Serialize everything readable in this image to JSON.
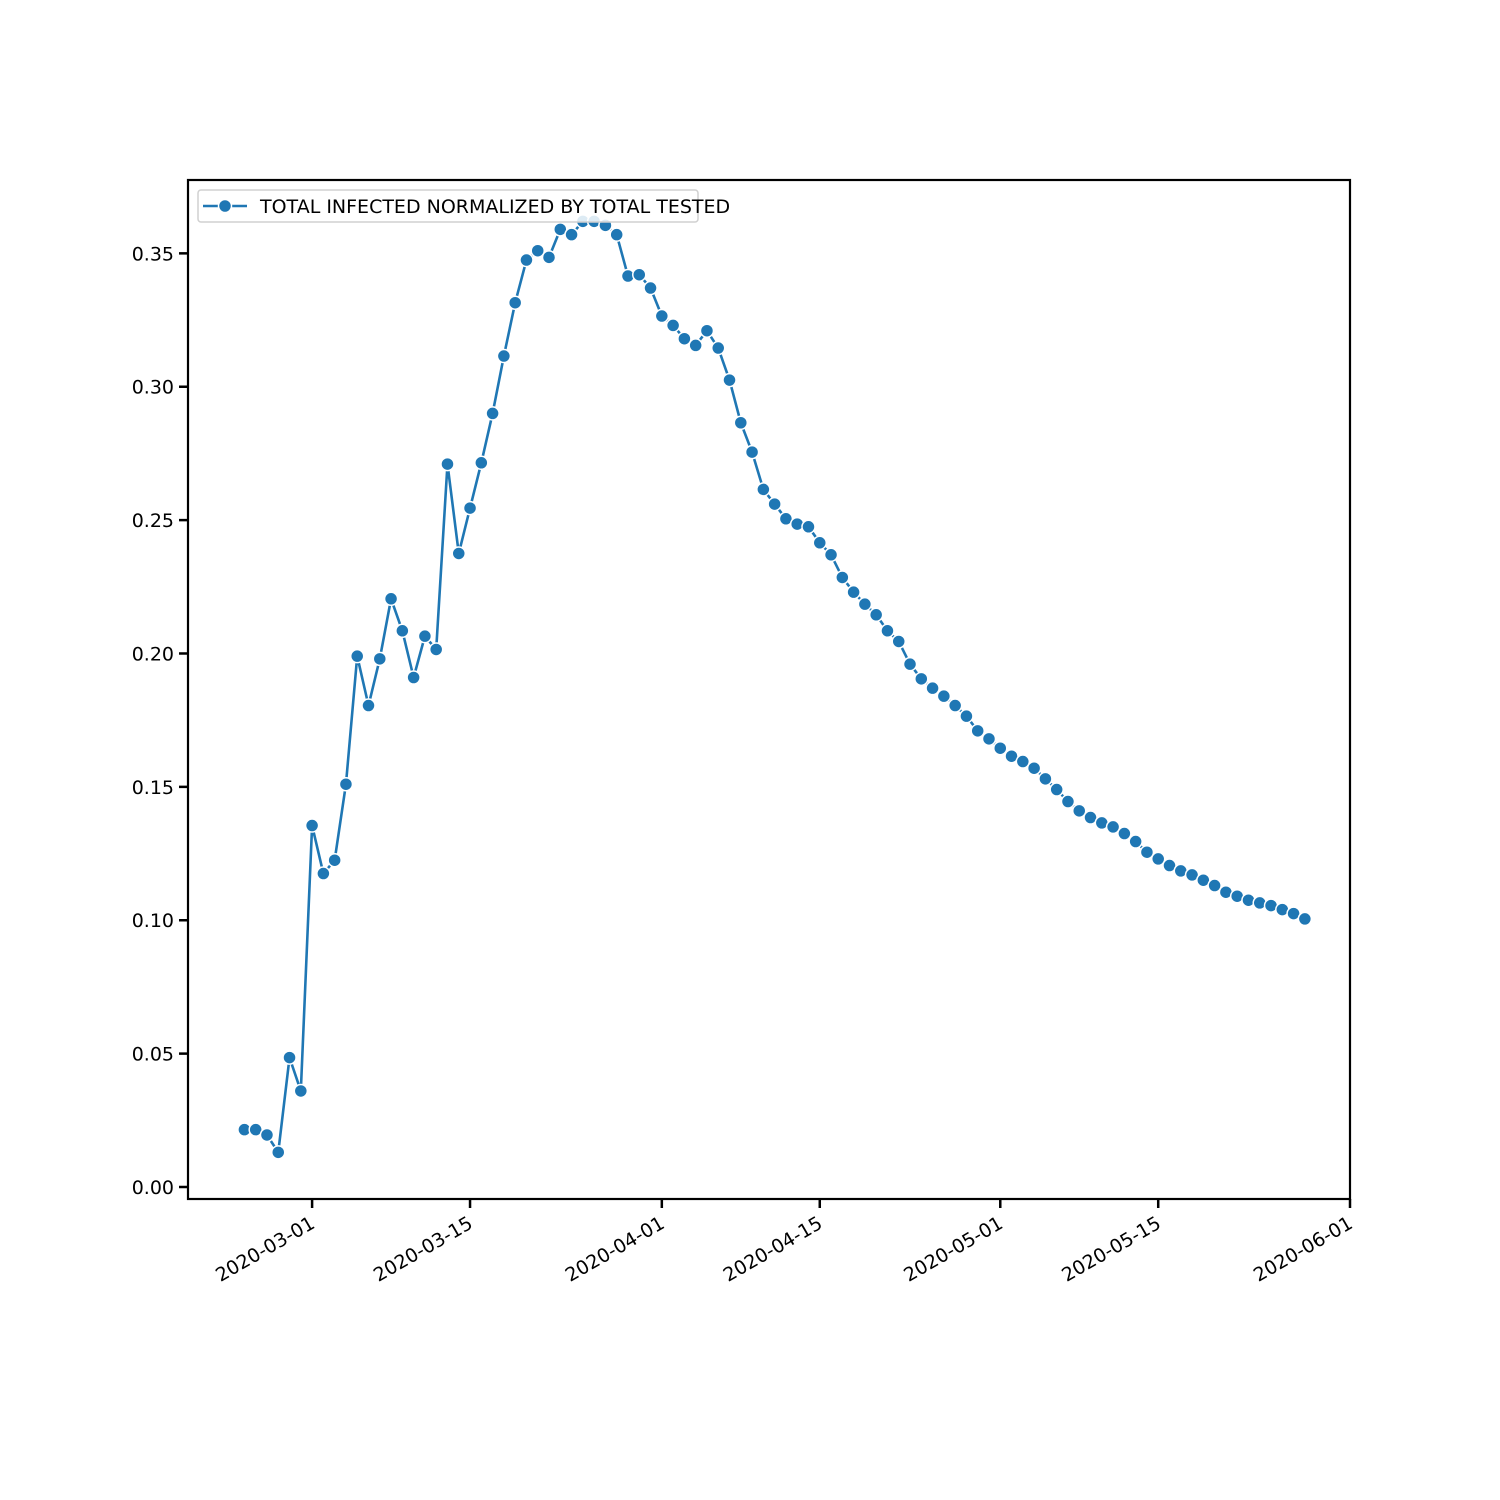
{
  "chart_data": {
    "type": "line",
    "title": "",
    "xlabel": "",
    "ylabel": "",
    "x_start": "2020-02-24",
    "x_step_days": 1,
    "xlim": [
      "2020-02-19",
      "2020-06-01"
    ],
    "ylim": [
      -0.0045,
      0.3775
    ],
    "grid": false,
    "legend_position": "top-left",
    "x_tick_labels": [
      "2020-03-01",
      "2020-03-15",
      "2020-04-01",
      "2020-04-15",
      "2020-05-01",
      "2020-05-15",
      "2020-06-01"
    ],
    "y_tick_labels": [
      "0.00",
      "0.05",
      "0.10",
      "0.15",
      "0.20",
      "0.25",
      "0.30",
      "0.35"
    ],
    "series": [
      {
        "name": "TOTAL INFECTED NORMALIZED BY TOTAL TESTED",
        "color": "#1f77b4",
        "marker": "circle",
        "values": [
          0.0215,
          0.0215,
          0.0195,
          0.013,
          0.0485,
          0.036,
          0.1355,
          0.1175,
          0.1225,
          0.151,
          0.199,
          0.1805,
          0.198,
          0.2205,
          0.2085,
          0.191,
          0.2065,
          0.2015,
          0.271,
          0.2375,
          0.2545,
          0.2715,
          0.29,
          0.3115,
          0.3315,
          0.3475,
          0.351,
          0.3485,
          0.359,
          0.357,
          0.362,
          0.362,
          0.3605,
          0.357,
          0.3415,
          0.342,
          0.337,
          0.3265,
          0.323,
          0.318,
          0.3155,
          0.321,
          0.3145,
          0.3025,
          0.2865,
          0.2755,
          0.2615,
          0.256,
          0.2505,
          0.2485,
          0.2475,
          0.2415,
          0.237,
          0.2285,
          0.223,
          0.2185,
          0.2145,
          0.2085,
          0.2045,
          0.196,
          0.1905,
          0.187,
          0.184,
          0.1805,
          0.1765,
          0.171,
          0.168,
          0.1645,
          0.1615,
          0.1595,
          0.157,
          0.153,
          0.149,
          0.1445,
          0.141,
          0.1385,
          0.1365,
          0.135,
          0.1325,
          0.1295,
          0.1255,
          0.123,
          0.1205,
          0.1185,
          0.117,
          0.115,
          0.113,
          0.1105,
          0.109,
          0.1075,
          0.1065,
          0.1055,
          0.104,
          0.1025,
          0.1005
        ]
      }
    ]
  }
}
